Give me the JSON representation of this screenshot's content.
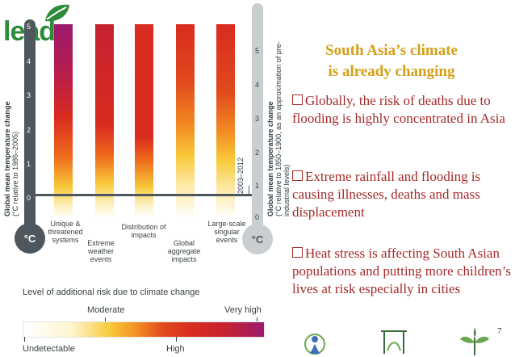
{
  "logo": {
    "text": "lead"
  },
  "slide": {
    "title_line1": "South Asia’s climate",
    "title_line2": "is already changing",
    "bullets": [
      "Globally, the risk of deaths due to flooding is highly concentrated in Asia",
      "Extreme rainfall and flooding is causing illnesses, deaths and mass displacement",
      "Heat stress is affecting  South Asian populations and putting more children’s lives at risk especially in cities"
    ],
    "page_number": "7"
  },
  "diagram": {
    "left_axis": {
      "title_bold": "Global mean temperature change",
      "title_note": "(°C relative to 1986–2005)",
      "ticks": [
        "5",
        "4",
        "3",
        "2",
        "1",
        "0"
      ],
      "unit": "°C"
    },
    "right_axis": {
      "title_bold": "Global mean temperature change",
      "title_note": "(°C relative to 1850–1900, as an approximation of pre-industrial levels)",
      "ticks": [
        "5",
        "4",
        "3",
        "2",
        "1",
        "0"
      ],
      "unit": "°C"
    },
    "period_label": "2003–2012",
    "columns": [
      {
        "label": "Unique & threatened systems",
        "shading": "high"
      },
      {
        "label": "Extreme weather events",
        "shading": "high"
      },
      {
        "label": "Distribution of impacts",
        "shading": "high"
      },
      {
        "label": "Global aggregate impacts",
        "shading": "medium"
      },
      {
        "label": "Large-scale singular events",
        "shading": "medium"
      }
    ],
    "risk_scale": {
      "title": "Level of additional risk due to climate change",
      "labels": [
        "Undetectable",
        "Moderate",
        "High",
        "Very high"
      ],
      "colors": [
        "#ffffff",
        "#f5c518",
        "#d92b1f",
        "#9c1a6e"
      ]
    }
  },
  "icons": [
    "person-in-circle-icon",
    "pergola-icon",
    "leaf-plant-icon"
  ]
}
